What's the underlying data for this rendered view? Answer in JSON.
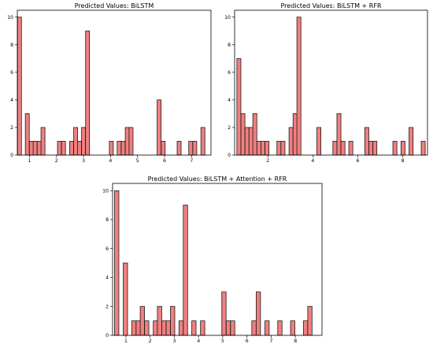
{
  "chart_data": [
    {
      "type": "bar",
      "title": "Predicted Values: BiLSTM",
      "xlim": [
        0.55,
        7.72
      ],
      "ylim": [
        0,
        10.5
      ],
      "xticks": [
        1,
        2,
        3,
        4,
        5,
        6,
        7
      ],
      "yticks": [
        0,
        2,
        4,
        6,
        8,
        10
      ],
      "bin_width": 0.146,
      "x": [
        0.63,
        0.92,
        1.07,
        1.21,
        1.36,
        1.5,
        2.11,
        2.26,
        2.56,
        2.71,
        2.85,
        3.0,
        3.15,
        4.03,
        4.32,
        4.47,
        4.62,
        4.76,
        5.8,
        5.95,
        6.54,
        6.97,
        7.12,
        7.42
      ],
      "values": [
        10,
        3,
        1,
        1,
        1,
        2,
        1,
        1,
        1,
        2,
        1,
        2,
        9,
        1,
        1,
        1,
        2,
        2,
        4,
        1,
        1,
        1,
        1,
        2
      ]
    },
    {
      "type": "bar",
      "title": "Predicted Values: BiLSTM + RFR",
      "xlim": [
        0.52,
        9.1
      ],
      "ylim": [
        0,
        10.5
      ],
      "xticks": [
        2,
        4,
        6,
        8
      ],
      "yticks": [
        0,
        2,
        4,
        6,
        8,
        10
      ],
      "bin_width": 0.178,
      "x": [
        0.71,
        0.89,
        1.07,
        1.25,
        1.42,
        1.6,
        1.78,
        1.96,
        2.49,
        2.67,
        3.03,
        3.21,
        3.38,
        4.27,
        4.98,
        5.16,
        5.34,
        5.69,
        6.4,
        6.58,
        6.76,
        7.65,
        8.01,
        8.37,
        8.91
      ],
      "values": [
        7,
        3,
        2,
        2,
        3,
        1,
        1,
        1,
        1,
        1,
        2,
        3,
        10,
        2,
        1,
        3,
        1,
        1,
        2,
        1,
        1,
        1,
        1,
        2,
        1
      ]
    },
    {
      "type": "bar",
      "title": "Predicted Values: BiLSTM + Attention + RFR",
      "xlim": [
        0.45,
        9.1
      ],
      "ylim": [
        0,
        10.5
      ],
      "xticks": [
        1,
        2,
        3,
        4,
        5,
        6,
        7,
        8
      ],
      "yticks": [
        0,
        2,
        4,
        6,
        8,
        10
      ],
      "bin_width": 0.177,
      "x": [
        0.62,
        0.98,
        1.33,
        1.51,
        1.68,
        1.86,
        2.22,
        2.39,
        2.57,
        2.75,
        2.93,
        3.28,
        3.46,
        3.81,
        4.17,
        5.05,
        5.23,
        5.41,
        6.29,
        6.47,
        6.83,
        7.36,
        7.89,
        8.42,
        8.6
      ],
      "values": [
        10,
        5,
        1,
        1,
        2,
        1,
        1,
        2,
        1,
        1,
        2,
        1,
        9,
        1,
        1,
        3,
        1,
        1,
        1,
        3,
        1,
        1,
        1,
        1,
        2
      ]
    }
  ]
}
